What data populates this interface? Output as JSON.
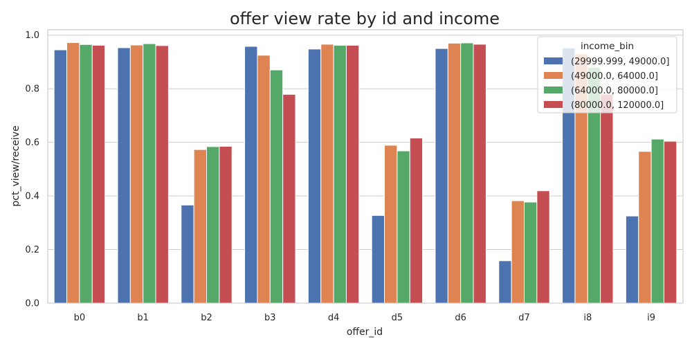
{
  "chart_data": {
    "type": "bar",
    "title": "offer view rate by id and income",
    "xlabel": "offer_id",
    "ylabel": "pct_view/receive",
    "categories": [
      "b0",
      "b1",
      "b2",
      "b3",
      "d4",
      "d5",
      "d6",
      "d7",
      "i8",
      "i9"
    ],
    "ylim": [
      0,
      1.02
    ],
    "yticks": [
      "0.0",
      "0.2",
      "0.4",
      "0.6",
      "0.8",
      "1.0"
    ],
    "grid": true,
    "legend_title": "income_bin",
    "legend_position": "top-right",
    "series": [
      {
        "name": "(29999.999, 49000.0]",
        "color": "#4c72b0",
        "values": [
          0.945,
          0.953,
          0.366,
          0.958,
          0.948,
          0.327,
          0.95,
          0.158,
          0.952,
          0.325
        ]
      },
      {
        "name": "(49000.0, 64000.0]",
        "color": "#dd8452",
        "values": [
          0.972,
          0.963,
          0.573,
          0.925,
          0.966,
          0.589,
          0.97,
          0.382,
          0.93,
          0.566
        ]
      },
      {
        "name": "(64000.0, 80000.0]",
        "color": "#55a868",
        "values": [
          0.965,
          0.968,
          0.584,
          0.87,
          0.962,
          0.568,
          0.971,
          0.377,
          0.88,
          0.612
        ]
      },
      {
        "name": "(80000.0, 120000.0]",
        "color": "#c44e52",
        "values": [
          0.962,
          0.961,
          0.585,
          0.779,
          0.962,
          0.616,
          0.966,
          0.419,
          0.78,
          0.604
        ]
      }
    ]
  }
}
